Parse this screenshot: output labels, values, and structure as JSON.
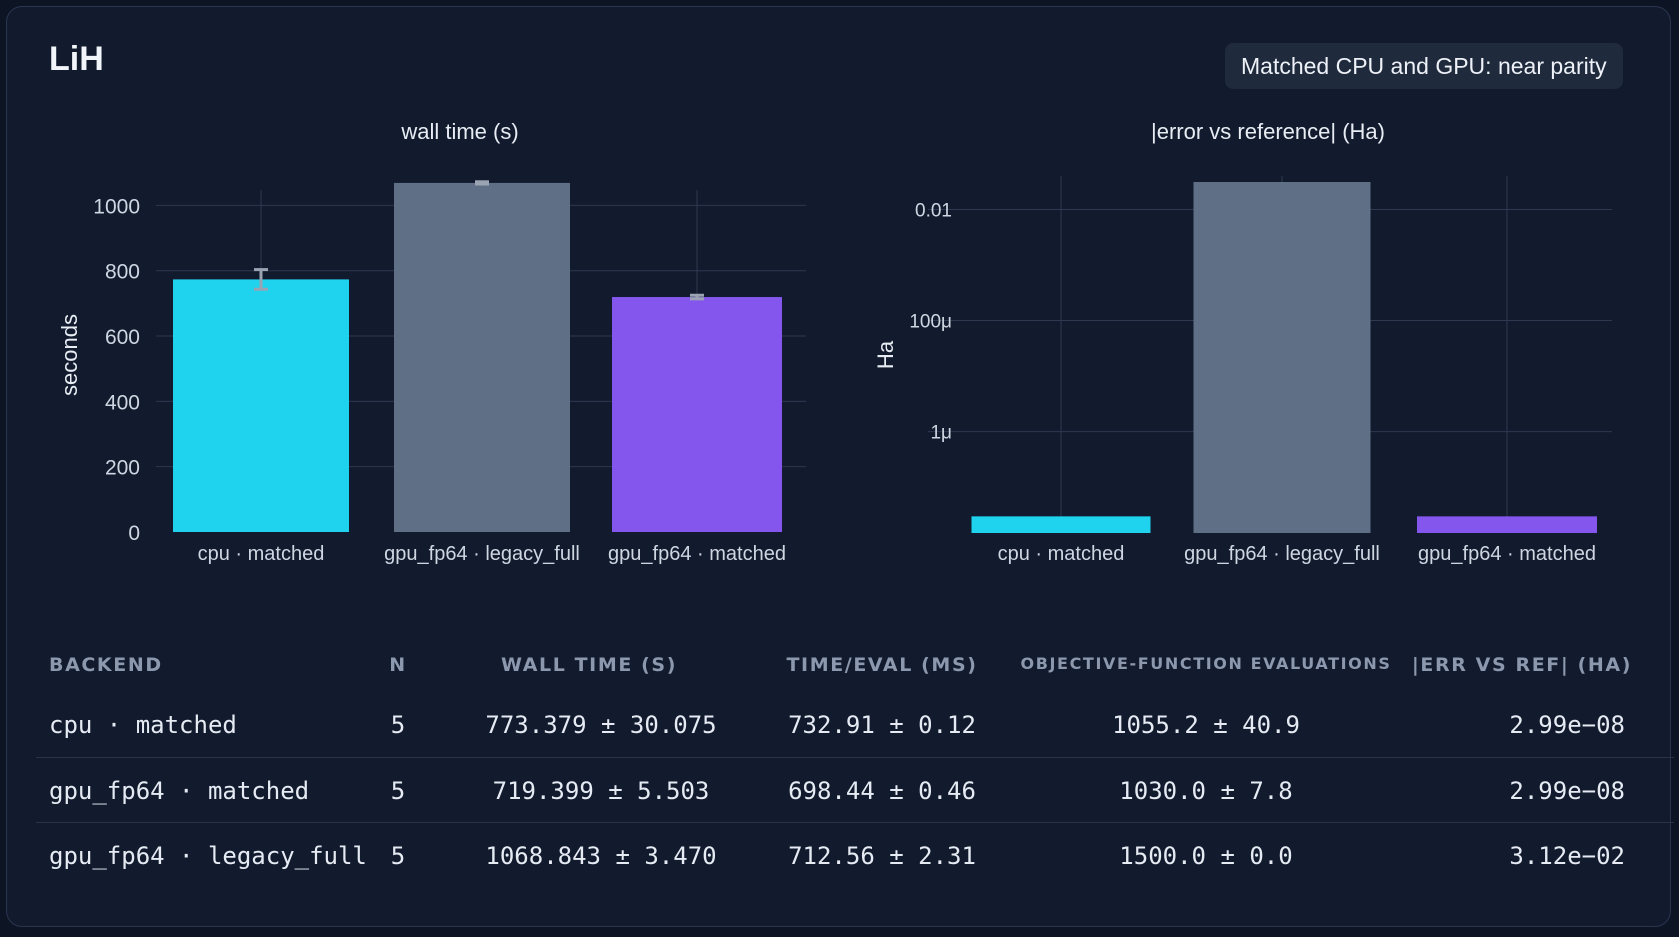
{
  "page": {
    "title": "LiH",
    "badge": "Matched CPU and GPU: near parity"
  },
  "colors": {
    "cyan": "#1fd3ef",
    "slate": "#5f6f86",
    "violet": "#8456ee",
    "grid": "#2d3950",
    "tick": "#cfd6e2",
    "errorbar": "#9aa3b2"
  },
  "chart_data": [
    {
      "type": "bar",
      "title": "wall time (s)",
      "xlabel": "",
      "ylabel": "seconds",
      "ylim": [
        0,
        1090
      ],
      "ticks": [
        0,
        200,
        400,
        600,
        800,
        1000
      ],
      "tick_labels": [
        "0",
        "200",
        "400",
        "600",
        "800",
        "1000"
      ],
      "grid": true,
      "categories": [
        "cpu · matched",
        "gpu_fp64 · legacy_full",
        "gpu_fp64 · matched"
      ],
      "values": [
        773.379,
        1068.843,
        719.399
      ],
      "errors": [
        30.075,
        3.47,
        5.503
      ],
      "bar_colors": [
        "#1fd3ef",
        "#5f6f86",
        "#8456ee"
      ]
    },
    {
      "type": "bar",
      "title": "|error vs reference| (Ha)",
      "xlabel": "",
      "ylabel": "Ha",
      "yscale": "log",
      "ylim": [
        1.5e-08,
        0.04
      ],
      "ticks": [
        1e-06,
        0.0001,
        0.01
      ],
      "tick_labels": [
        "1μ",
        "100μ",
        "0.01"
      ],
      "grid": true,
      "categories": [
        "cpu · matched",
        "gpu_fp64 · legacy_full",
        "gpu_fp64 · matched"
      ],
      "values": [
        2.99e-08,
        0.0312,
        2.99e-08
      ],
      "bar_colors": [
        "#1fd3ef",
        "#5f6f86",
        "#8456ee"
      ]
    }
  ],
  "table": {
    "headers": [
      "BACKEND",
      "N",
      "WALL TIME (S)",
      "TIME/EVAL (MS)",
      "OBJECTIVE-FUNCTION EVALUATIONS",
      "|ERR VS REF| (HA)"
    ],
    "rows": [
      [
        "cpu · matched",
        "5",
        "773.379 ± 30.075",
        "732.91 ± 0.12",
        "1055.2 ± 40.9",
        "2.99e−08"
      ],
      [
        "gpu_fp64 · matched",
        "5",
        "719.399 ± 5.503",
        "698.44 ± 0.46",
        "1030.0 ± 7.8",
        "2.99e−08"
      ],
      [
        "gpu_fp64 · legacy_full",
        "5",
        "1068.843 ± 3.470",
        "712.56 ± 2.31",
        "1500.0 ± 0.0",
        "3.12e−02"
      ]
    ]
  }
}
